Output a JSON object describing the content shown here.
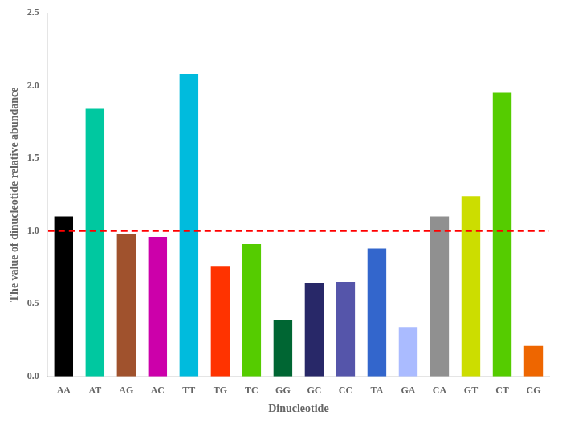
{
  "chart_data": {
    "type": "bar",
    "categories": [
      "AA",
      "AT",
      "AG",
      "AC",
      "TT",
      "TG",
      "TC",
      "GG",
      "GC",
      "CC",
      "TA",
      "GA",
      "CA",
      "GT",
      "CT",
      "CG"
    ],
    "values": [
      1.1,
      1.84,
      0.98,
      0.96,
      2.08,
      0.76,
      0.91,
      0.39,
      0.64,
      0.65,
      0.88,
      0.34,
      1.1,
      1.24,
      1.95,
      0.21
    ],
    "colors": [
      "#000000",
      "#00C8A0",
      "#A0522D",
      "#CC00AA",
      "#00BBDD",
      "#FF3300",
      "#55CC00",
      "#006633",
      "#282868",
      "#5555AA",
      "#3366CC",
      "#AABBFF",
      "#909090",
      "#CCDD00",
      "#55CC00",
      "#EE6600"
    ],
    "xlabel": "Dinucleotide",
    "ylabel": "The value of dinucleotide relative abundance",
    "ylim": [
      0.0,
      2.5
    ],
    "yticks": [
      {
        "value": 0.0,
        "label": "0.0"
      },
      {
        "value": 0.5,
        "label": "0.5"
      },
      {
        "value": 1.0,
        "label": "1.0"
      },
      {
        "value": 1.5,
        "label": "1.5"
      },
      {
        "value": 2.0,
        "label": "2.0"
      },
      {
        "value": 2.5,
        "label": "2.5"
      }
    ],
    "reference_line": {
      "value": 1.0,
      "color": "#FF0000",
      "line_style": "dashed"
    },
    "grid": false,
    "legend": false
  }
}
